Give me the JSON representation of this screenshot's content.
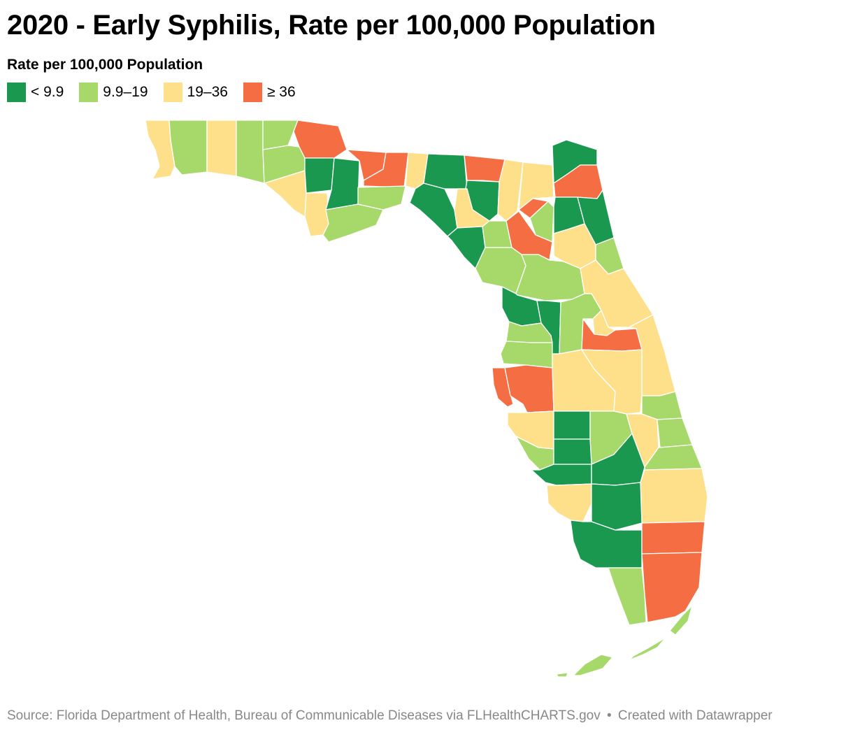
{
  "title": "2020 - Early Syphilis, Rate per 100,000 Population",
  "legend": {
    "title": "Rate per 100,000 Population",
    "items": [
      {
        "label": "< 9.9",
        "color": "#1a9850"
      },
      {
        "label": "9.9–19",
        "color": "#a6d96a"
      },
      {
        "label": "19–36",
        "color": "#fee08b"
      },
      {
        "label": "≥ 36",
        "color": "#f46d43"
      }
    ]
  },
  "source": {
    "text": "Source: Florida Department of Health, Bureau of Communicable Diseases via FLHealthCHARTS.gov",
    "separator": "•",
    "credit": "Created with Datawrapper"
  }
}
